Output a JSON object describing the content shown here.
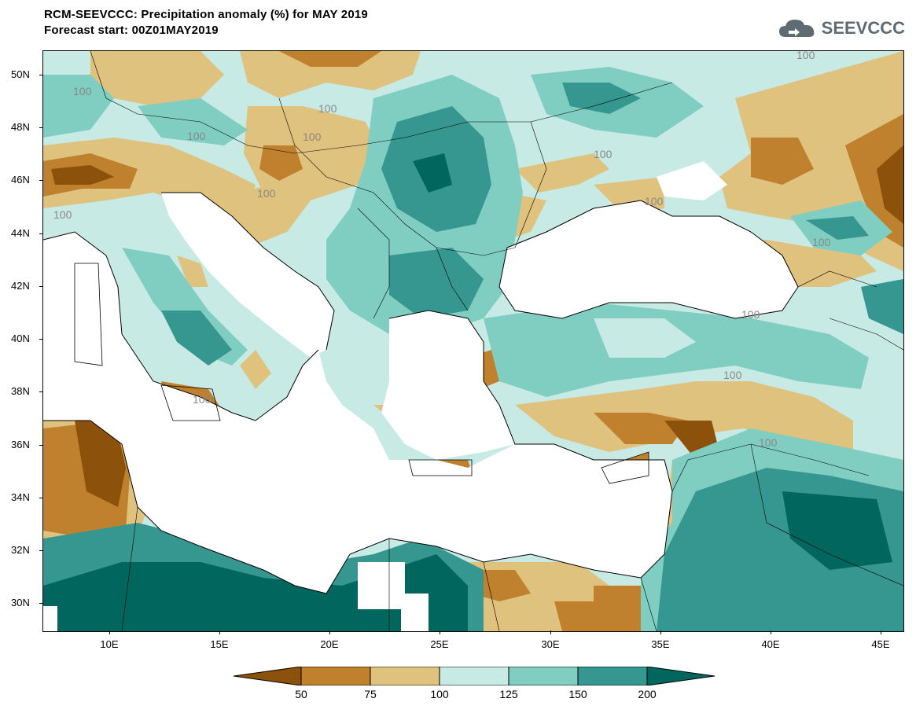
{
  "header": {
    "title_line1": "RCM-SEEVCCC: Precipitation anomaly (%) for MAY 2019",
    "title_line2": "Forecast start: 00Z01MAY2019",
    "logo_text": "SEEVCCC"
  },
  "map": {
    "lat_ticks": [
      "50N",
      "48N",
      "46N",
      "44N",
      "42N",
      "40N",
      "38N",
      "36N",
      "34N",
      "32N",
      "30N"
    ],
    "lon_ticks": [
      "10E",
      "15E",
      "20E",
      "25E",
      "30E",
      "35E",
      "40E",
      "45E"
    ],
    "contour_labels": [
      "100",
      "100",
      "100",
      "100",
      "100",
      "100",
      "100",
      "100",
      "100",
      "100",
      "100",
      "100",
      "100",
      "100"
    ]
  },
  "legend": {
    "values": [
      "50",
      "75",
      "100",
      "125",
      "150",
      "200"
    ],
    "colors": {
      "below_50": "#8c510a",
      "50_75": "#bf812d",
      "75_100": "#dfc27d",
      "100_125": "#c7eae5",
      "125_150": "#80cdc1",
      "150_200": "#35978f",
      "above_200": "#01665e"
    }
  }
}
